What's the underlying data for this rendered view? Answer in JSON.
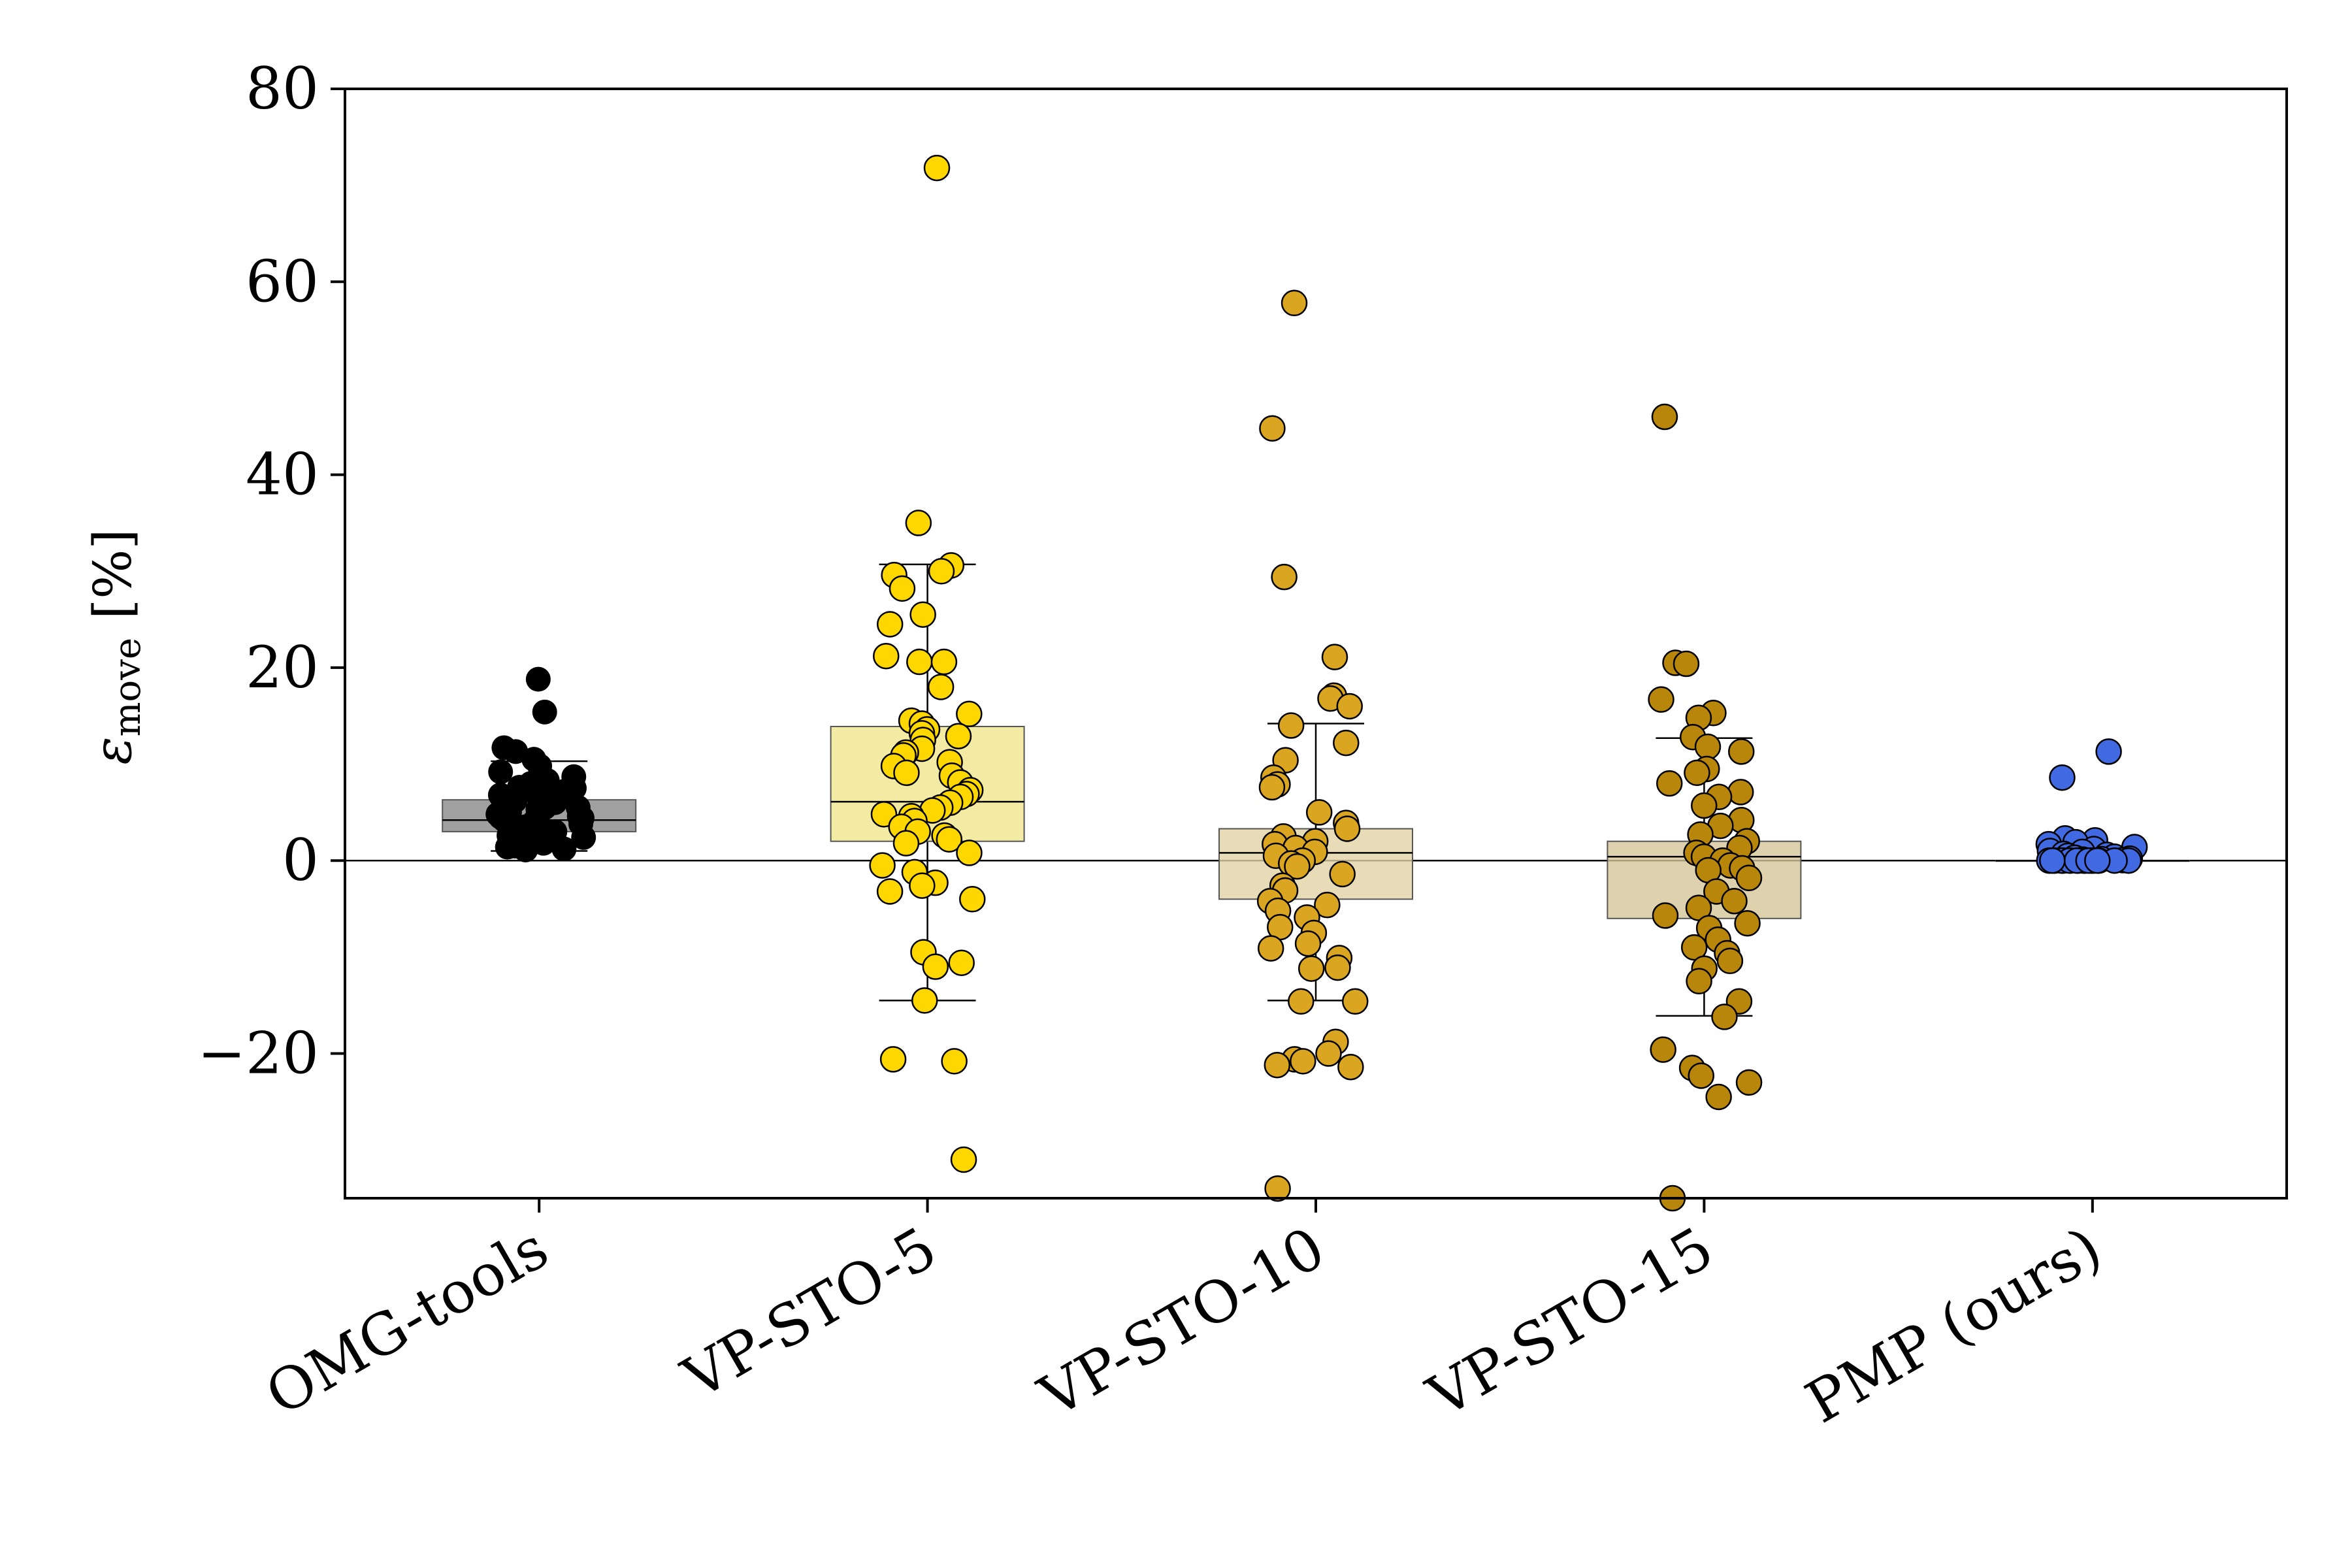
{
  "chart_data": {
    "type": "box-strip",
    "title": "",
    "xlabel": "",
    "ylabel": "[%]",
    "ylabel_symbol": "ε",
    "ylabel_subscript": "move",
    "ylim": [
      -35,
      80
    ],
    "yticks": [
      -20,
      0,
      20,
      40,
      60,
      80
    ],
    "ytick_labels": [
      "−20",
      "0",
      "20",
      "40",
      "60",
      "80"
    ],
    "categories": [
      "OMG-tools",
      "VP-STO-5",
      "VP-STO-10",
      "VP-STO-15",
      "PMP (ours)"
    ],
    "reference_line_y": 0,
    "series": [
      {
        "name": "OMG-tools",
        "point_color": "#000000",
        "box_color": "#888888",
        "box": {
          "q1": 3,
          "median": 4.2,
          "q3": 6.3,
          "whisker_low": 1,
          "whisker_high": 10.3
        },
        "points": [
          18.8,
          15.4,
          11.7,
          11.3,
          10.5,
          9.8,
          9.2,
          8.7,
          8.3,
          8,
          7.6,
          7.2,
          7,
          6.8,
          6.5,
          6.2,
          6,
          5.8,
          5.5,
          5.3,
          5,
          4.8,
          4.6,
          4.4,
          4.2,
          4,
          3.8,
          3.6,
          3.4,
          3.2,
          3,
          2.8,
          2.6,
          2.4,
          2.2,
          2,
          1.8,
          1.6,
          1.4,
          1.2,
          1.1,
          3.5,
          4.5,
          5.5,
          6.5,
          7.5,
          2.5,
          1.5
        ]
      },
      {
        "name": "VP-STO-5",
        "point_color": "#FFD700",
        "box_color": "#F0E68C",
        "box": {
          "q1": 2,
          "median": 6.1,
          "q3": 13.9,
          "whisker_low": -14.5,
          "whisker_high": 30.7
        },
        "points": [
          71.8,
          35,
          30.6,
          30,
          29.6,
          28.2,
          25.5,
          24.5,
          21.2,
          20.6,
          20.6,
          18,
          15.2,
          14.5,
          14.2,
          13.6,
          13.2,
          12.9,
          12.5,
          11.6,
          11.2,
          10.9,
          10.2,
          9.8,
          9.1,
          8.8,
          8.1,
          7.3,
          6.9,
          6.6,
          6,
          5.5,
          5.2,
          4.8,
          4.6,
          4.1,
          3.5,
          3,
          2.6,
          2.2,
          1.8,
          0.8,
          -0.5,
          -1.2,
          -2.3,
          -2.6,
          -3.2,
          -4,
          -9.5,
          -10.6,
          -11,
          -14.5,
          -20.6,
          -20.8,
          -31
        ]
      },
      {
        "name": "VP-STO-10",
        "point_color": "#DAA520",
        "box_color": "#E1D3A5",
        "box": {
          "q1": -4,
          "median": 0.8,
          "q3": 3.3,
          "whisker_low": -14.5,
          "whisker_high": 14.2
        },
        "points": [
          57.8,
          44.8,
          29.4,
          21.1,
          17.1,
          16.8,
          16,
          14,
          12.2,
          10.4,
          8.6,
          7.9,
          7.6,
          5,
          3.9,
          3.3,
          2.5,
          2,
          1.7,
          1.3,
          0.9,
          0.5,
          0,
          -0.3,
          -0.6,
          -1.4,
          -2.6,
          -3.1,
          -4.2,
          -4.6,
          -5.2,
          -5.9,
          -6.9,
          -7.5,
          -8.6,
          -9.1,
          -10.1,
          -11.2,
          -11.1,
          -14.6,
          -14.6,
          -18.8,
          -20,
          -20.6,
          -20.8,
          -21.2,
          -21.4,
          -34
        ]
      },
      {
        "name": "VP-STO-15",
        "point_color": "#B8860B",
        "box_color": "#D6C699",
        "box": {
          "q1": -6,
          "median": 0.4,
          "q3": 2,
          "whisker_low": -16.1,
          "whisker_high": 12.7
        },
        "points": [
          46,
          20.5,
          20.4,
          16.7,
          15.3,
          14.8,
          12.8,
          11.8,
          11.3,
          9.5,
          9.1,
          8,
          7.1,
          6.6,
          5.7,
          4.2,
          3.6,
          2.7,
          2,
          1.3,
          0.8,
          0.4,
          0,
          -0.5,
          -0.8,
          -1,
          -1.8,
          -3.2,
          -4.2,
          -4.9,
          -5.7,
          -6.5,
          -7,
          -8.2,
          -9,
          -9.6,
          -10.4,
          -11.2,
          -12.5,
          -14.6,
          -16.2,
          -19.6,
          -21.5,
          -22.3,
          -23,
          -24.5,
          -35
        ]
      },
      {
        "name": "PMP (ours)",
        "point_color": "#4169E1",
        "box_color": "#A9B8E6",
        "box": {
          "q1": 0,
          "median": 0,
          "q3": 0,
          "whisker_low": 0,
          "whisker_high": 0
        },
        "points": [
          11.3,
          8.6,
          2.3,
          2.1,
          1.9,
          1.7,
          1.4,
          1.2,
          1,
          0.9,
          0.7,
          0.6,
          0.5,
          0.4,
          0.3,
          0.2,
          0.15,
          0.1,
          0.05,
          0,
          0,
          0,
          0,
          0,
          0,
          0,
          0,
          0,
          0,
          0,
          0,
          0,
          0,
          0,
          0,
          0
        ]
      }
    ]
  }
}
